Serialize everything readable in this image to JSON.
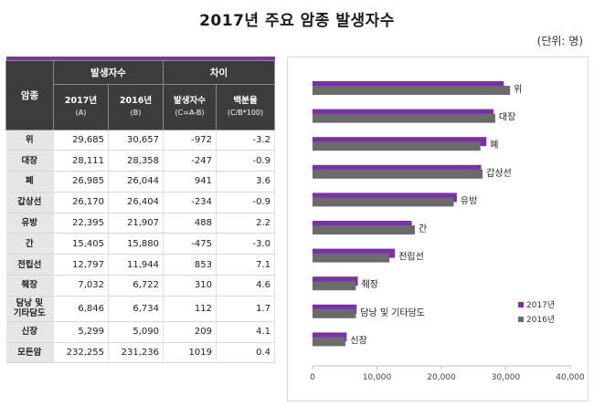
{
  "title": "2017년 주요 암종 발생자수",
  "unit": "(단위: 명)",
  "table": {
    "head_cancer": "암종",
    "head_group_count": "발생자수",
    "head_group_diff": "차이",
    "head_2017": "2017년",
    "head_2017_sub": "(A)",
    "head_2016": "2016년",
    "head_2016_sub": "(B)",
    "head_diff": "발생자수",
    "head_diff_sub": "(C=A-B)",
    "head_pct": "백분율",
    "head_pct_sub": "(C/B*100)",
    "rows": [
      {
        "name": "위",
        "y2017": "29,685",
        "y2016": "30,657",
        "diff": "-972",
        "pct": "-3.2"
      },
      {
        "name": "대장",
        "y2017": "28,111",
        "y2016": "28,358",
        "diff": "-247",
        "pct": "-0.9"
      },
      {
        "name": "폐",
        "y2017": "26,985",
        "y2016": "26,044",
        "diff": "941",
        "pct": "3.6"
      },
      {
        "name": "갑상선",
        "y2017": "26,170",
        "y2016": "26,404",
        "diff": "-234",
        "pct": "-0.9"
      },
      {
        "name": "유방",
        "y2017": "22,395",
        "y2016": "21,907",
        "diff": "488",
        "pct": "2.2"
      },
      {
        "name": "간",
        "y2017": "15,405",
        "y2016": "15,880",
        "diff": "-475",
        "pct": "-3.0"
      },
      {
        "name": "전립선",
        "y2017": "12,797",
        "y2016": "11,944",
        "diff": "853",
        "pct": "7.1"
      },
      {
        "name": "췌장",
        "y2017": "7,032",
        "y2016": "6,722",
        "diff": "310",
        "pct": "4.6"
      },
      {
        "name_l1": "담낭 및",
        "name_l2": "기타담도",
        "y2017": "6,846",
        "y2016": "6,734",
        "diff": "112",
        "pct": "1.7"
      },
      {
        "name": "신장",
        "y2017": "5,299",
        "y2016": "5,090",
        "diff": "209",
        "pct": "4.1"
      },
      {
        "name": "모든암",
        "y2017": "232,255",
        "y2016": "231,236",
        "diff": "1019",
        "pct": "0.4"
      }
    ]
  },
  "chart_data": {
    "type": "bar",
    "orientation": "horizontal",
    "categories": [
      "위",
      "대장",
      "폐",
      "갑상선",
      "유방",
      "간",
      "전립선",
      "췌장",
      "담낭 및 기타담도",
      "신장"
    ],
    "series": [
      {
        "name": "2017년",
        "color": "#7b2fa8",
        "values": [
          29685,
          28111,
          26985,
          26170,
          22395,
          15405,
          12797,
          7032,
          6846,
          5299
        ]
      },
      {
        "name": "2016년",
        "color": "#6b6b6b",
        "values": [
          30657,
          28358,
          26044,
          26404,
          21907,
          15880,
          11944,
          6722,
          6734,
          5090
        ]
      }
    ],
    "xlim": [
      0,
      40000
    ],
    "xticks": [
      0,
      10000,
      20000,
      30000,
      40000
    ],
    "xtick_labels": [
      "0",
      "10,000",
      "20,000",
      "30,000",
      "40,000"
    ],
    "grid": false,
    "legend_position": "bottom-right"
  }
}
